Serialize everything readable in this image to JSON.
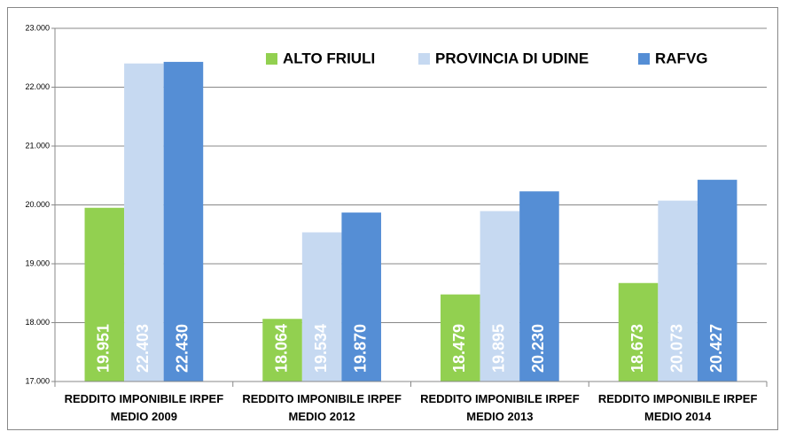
{
  "chart_data": {
    "type": "bar",
    "categories": [
      "REDDITO IMPONIBILE IRPEF\nMEDIO 2009",
      "REDDITO IMPONIBILE IRPEF\nMEDIO 2012",
      "REDDITO IMPONIBILE IRPEF\nMEDIO 2013",
      "REDDITO IMPONIBILE IRPEF\nMEDIO 2014"
    ],
    "series": [
      {
        "name": "ALTO FRIULI",
        "color": "#92d050",
        "values": [
          19951,
          18064,
          18479,
          18673
        ],
        "value_labels": [
          "19.951",
          "18.064",
          "18.479",
          "18.673"
        ]
      },
      {
        "name": "PROVINCIA DI UDINE",
        "color": "#c6d9f1",
        "values": [
          22403,
          19534,
          19895,
          20073
        ],
        "value_labels": [
          "22.403",
          "19.534",
          "19.895",
          "20.073"
        ]
      },
      {
        "name": "RAFVG",
        "color": "#558ed5",
        "values": [
          22430,
          19870,
          20230,
          20427
        ],
        "value_labels": [
          "22.430",
          "19.870",
          "20.230",
          "20.427"
        ]
      }
    ],
    "ylim": [
      17000,
      23000
    ],
    "yticks": [
      {
        "value": 17000,
        "label": "17.000"
      },
      {
        "value": 18000,
        "label": "18.000"
      },
      {
        "value": 19000,
        "label": "19.000"
      },
      {
        "value": 20000,
        "label": "20.000"
      },
      {
        "value": 21000,
        "label": "21.000"
      },
      {
        "value": 22000,
        "label": "22.000"
      },
      {
        "value": 23000,
        "label": "23.000"
      }
    ],
    "grid": true,
    "legend": "top"
  }
}
